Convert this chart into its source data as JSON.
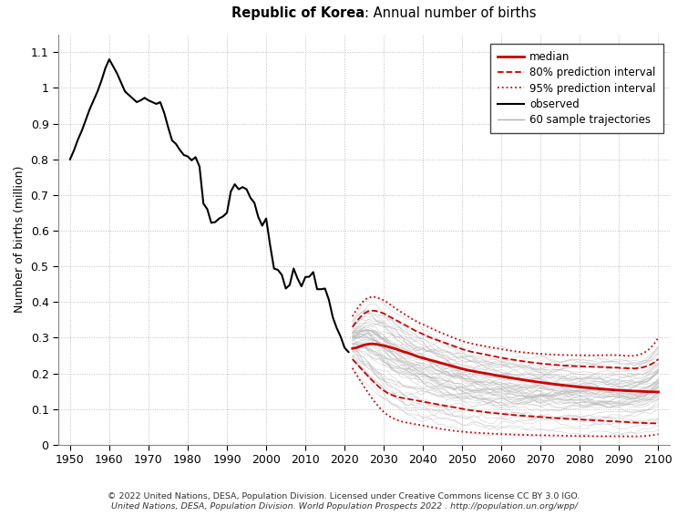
{
  "title_bold": "Republic of Korea",
  "title_normal": ": Annual number of births",
  "ylabel": "Number of births (million)",
  "xlabel": "",
  "xlim": [
    1947,
    2103
  ],
  "ylim": [
    0,
    1.15
  ],
  "yticks": [
    0.0,
    0.1,
    0.2,
    0.3,
    0.4,
    0.5,
    0.6,
    0.7,
    0.8,
    0.9,
    1.0,
    1.1
  ],
  "ytick_labels": [
    "0",
    "0.1",
    "0.2",
    "0.3",
    "0.4",
    "0.5",
    "0.6",
    "0.7",
    "0.8",
    "0.9",
    "1",
    "1.1"
  ],
  "xticks": [
    1950,
    1960,
    1970,
    1980,
    1990,
    2000,
    2010,
    2020,
    2030,
    2040,
    2050,
    2060,
    2070,
    2080,
    2090,
    2100
  ],
  "background_color": "#ffffff",
  "grid_color": "#bbbbbb",
  "observed_color": "#000000",
  "median_color": "#cc0000",
  "pi80_color": "#cc0000",
  "pi95_color": "#cc0000",
  "trajectory_color": "#b0b0b0",
  "footer_line1": "© 2022 United Nations, DESA, Population Division. Licensed under Creative Commons license CC BY 3.0 IGO.",
  "footer_line2": "United Nations, DESA, Population Division. World Population Prospects 2022 . http://population.un.org/wpp/",
  "obs_years": [
    1950,
    1951,
    1952,
    1953,
    1954,
    1955,
    1956,
    1957,
    1958,
    1959,
    1960,
    1961,
    1962,
    1963,
    1964,
    1965,
    1966,
    1967,
    1968,
    1969,
    1970,
    1971,
    1972,
    1973,
    1974,
    1975,
    1976,
    1977,
    1978,
    1979,
    1980,
    1981,
    1982,
    1983,
    1984,
    1985,
    1986,
    1987,
    1988,
    1989,
    1990,
    1991,
    1992,
    1993,
    1994,
    1995,
    1996,
    1997,
    1998,
    1999,
    2000,
    2001,
    2002,
    2003,
    2004,
    2005,
    2006,
    2007,
    2008,
    2009,
    2010,
    2011,
    2012,
    2013,
    2014,
    2015,
    2016,
    2017,
    2018,
    2019,
    2020,
    2021
  ],
  "obs_vals": [
    0.8,
    0.825,
    0.855,
    0.88,
    0.91,
    0.94,
    0.965,
    0.99,
    1.02,
    1.055,
    1.08,
    1.06,
    1.04,
    1.015,
    0.99,
    0.98,
    0.97,
    0.96,
    0.965,
    0.972,
    0.965,
    0.96,
    0.955,
    0.96,
    0.93,
    0.89,
    0.853,
    0.843,
    0.826,
    0.812,
    0.808,
    0.797,
    0.806,
    0.78,
    0.676,
    0.66,
    0.622,
    0.624,
    0.634,
    0.64,
    0.65,
    0.71,
    0.73,
    0.716,
    0.722,
    0.716,
    0.692,
    0.678,
    0.638,
    0.614,
    0.634,
    0.56,
    0.494,
    0.49,
    0.476,
    0.438,
    0.448,
    0.494,
    0.466,
    0.444,
    0.47,
    0.471,
    0.484,
    0.436,
    0.436,
    0.438,
    0.406,
    0.357,
    0.327,
    0.303,
    0.272,
    0.26
  ],
  "proj_years": [
    2022,
    2023,
    2024,
    2025,
    2026,
    2027,
    2028,
    2029,
    2030,
    2031,
    2032,
    2033,
    2034,
    2035,
    2036,
    2037,
    2038,
    2039,
    2040,
    2041,
    2042,
    2043,
    2044,
    2045,
    2046,
    2047,
    2048,
    2049,
    2050,
    2055,
    2060,
    2065,
    2070,
    2075,
    2080,
    2085,
    2090,
    2095,
    2100
  ],
  "median": [
    0.27,
    0.272,
    0.276,
    0.28,
    0.282,
    0.283,
    0.282,
    0.28,
    0.278,
    0.275,
    0.272,
    0.269,
    0.265,
    0.261,
    0.258,
    0.254,
    0.25,
    0.246,
    0.243,
    0.24,
    0.237,
    0.234,
    0.231,
    0.228,
    0.225,
    0.222,
    0.219,
    0.216,
    0.213,
    0.202,
    0.192,
    0.183,
    0.175,
    0.168,
    0.162,
    0.157,
    0.153,
    0.15,
    0.148
  ],
  "pi80_upper": [
    0.33,
    0.345,
    0.358,
    0.368,
    0.374,
    0.376,
    0.375,
    0.372,
    0.368,
    0.362,
    0.356,
    0.35,
    0.344,
    0.338,
    0.332,
    0.326,
    0.32,
    0.315,
    0.31,
    0.305,
    0.3,
    0.296,
    0.292,
    0.288,
    0.284,
    0.28,
    0.276,
    0.272,
    0.268,
    0.255,
    0.244,
    0.235,
    0.228,
    0.223,
    0.22,
    0.218,
    0.216,
    0.215,
    0.24
  ],
  "pi80_lower": [
    0.24,
    0.228,
    0.216,
    0.204,
    0.192,
    0.181,
    0.17,
    0.16,
    0.152,
    0.145,
    0.14,
    0.136,
    0.133,
    0.131,
    0.129,
    0.127,
    0.125,
    0.123,
    0.121,
    0.119,
    0.117,
    0.115,
    0.113,
    0.111,
    0.109,
    0.107,
    0.105,
    0.103,
    0.101,
    0.093,
    0.087,
    0.082,
    0.078,
    0.074,
    0.071,
    0.068,
    0.065,
    0.062,
    0.06
  ],
  "pi95_upper": [
    0.36,
    0.378,
    0.393,
    0.405,
    0.412,
    0.415,
    0.414,
    0.41,
    0.405,
    0.398,
    0.39,
    0.382,
    0.375,
    0.368,
    0.361,
    0.354,
    0.348,
    0.342,
    0.337,
    0.332,
    0.327,
    0.322,
    0.317,
    0.312,
    0.308,
    0.303,
    0.299,
    0.295,
    0.291,
    0.278,
    0.268,
    0.26,
    0.255,
    0.252,
    0.251,
    0.251,
    0.251,
    0.252,
    0.3
  ],
  "pi95_lower": [
    0.215,
    0.198,
    0.18,
    0.162,
    0.146,
    0.13,
    0.116,
    0.103,
    0.092,
    0.083,
    0.076,
    0.071,
    0.067,
    0.064,
    0.062,
    0.06,
    0.058,
    0.056,
    0.054,
    0.052,
    0.05,
    0.048,
    0.046,
    0.044,
    0.042,
    0.041,
    0.039,
    0.038,
    0.037,
    0.033,
    0.03,
    0.028,
    0.027,
    0.026,
    0.025,
    0.024,
    0.024,
    0.024,
    0.03
  ],
  "n_trajectories": 60
}
